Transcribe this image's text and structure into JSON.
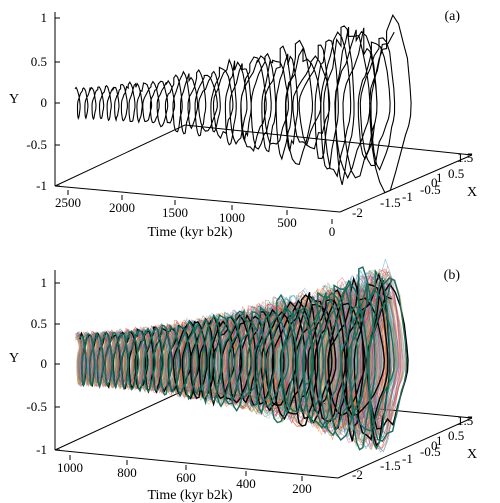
{
  "chart_data": [
    {
      "type": "line",
      "style": "3d-trajectory",
      "panel_label": "(a)",
      "y_label": "Y",
      "x_label": "X",
      "time_label": "Time (kyr b2k)",
      "y_ticks": [
        "1",
        "0.5",
        "0",
        "-0.5",
        "-1"
      ],
      "time_ticks": [
        "2500",
        "2000",
        "1500",
        "1000",
        "500",
        "0"
      ],
      "x_ticks": [
        "1.5",
        "0.5",
        "1",
        "0",
        "-0.5",
        "-1",
        "-1.5",
        "-2"
      ],
      "ylim": [
        -1,
        1
      ],
      "time_range": [
        2600,
        0
      ],
      "xlim": [
        -2,
        1.5
      ],
      "series_count": 1,
      "color": "#000000"
    },
    {
      "type": "line",
      "style": "3d-trajectory-ensemble",
      "panel_label": "(b)",
      "y_label": "Y",
      "x_label": "X",
      "time_label": "Time (kyr b2k)",
      "y_ticks": [
        "1",
        "0.5",
        "0",
        "-0.5",
        "-1"
      ],
      "time_ticks": [
        "1000",
        "800",
        "600",
        "400",
        "200"
      ],
      "x_ticks": [
        "1.5",
        "0.5",
        "1",
        "0",
        "-0.5",
        "-1",
        "-1.5",
        "-2"
      ],
      "ylim": [
        -1,
        1
      ],
      "time_range": [
        1000,
        0
      ],
      "xlim": [
        -2,
        1.5
      ],
      "series_count": 30,
      "highlight_colors": [
        "#000000",
        "#1b6b5a"
      ],
      "ensemble_colors": [
        "#e34a33",
        "#2b8cbe",
        "#31a354",
        "#756bb1",
        "#fd8d3c",
        "#de2d26",
        "#636363",
        "#3182bd",
        "#e6550d",
        "#9e9ac8",
        "#74c476",
        "#d95f0e",
        "#6baed6",
        "#c51b8a",
        "#fdae6b",
        "#a1d99b"
      ]
    }
  ]
}
